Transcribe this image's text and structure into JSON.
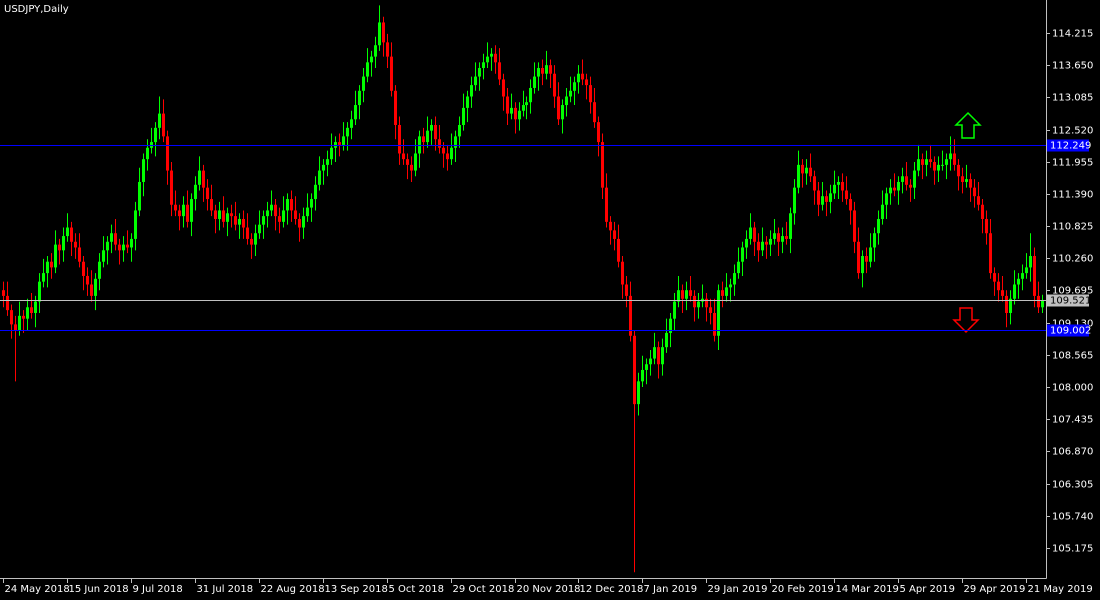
{
  "chart_data": {
    "type": "candlestick",
    "title": "USDJPY,Daily",
    "up_color": "#00ff00",
    "down_color": "#ff0000",
    "xlim": [
      -0.75,
      261
    ],
    "xticks": [
      {
        "value": 0,
        "label": "24 May 2018"
      },
      {
        "value": 16,
        "label": "15 Jun 2018"
      },
      {
        "value": 32,
        "label": "9 Jul 2018"
      },
      {
        "value": 48,
        "label": "31 Jul 2018"
      },
      {
        "value": 64,
        "label": "22 Aug 2018"
      },
      {
        "value": 80,
        "label": "13 Sep 2018"
      },
      {
        "value": 96,
        "label": "5 Oct 2018"
      },
      {
        "value": 112,
        "label": "29 Oct 2018"
      },
      {
        "value": 128,
        "label": "20 Nov 2018"
      },
      {
        "value": 144,
        "label": "12 Dec 2018"
      },
      {
        "value": 160,
        "label": "7 Jan 2019"
      },
      {
        "value": 176,
        "label": "29 Jan 2019"
      },
      {
        "value": 192,
        "label": "20 Feb 2019"
      },
      {
        "value": 208,
        "label": "14 Mar 2019"
      },
      {
        "value": 224,
        "label": "5 Apr 2019"
      },
      {
        "value": 240,
        "label": "29 Apr 2019"
      },
      {
        "value": 256,
        "label": "21 May 2019"
      }
    ],
    "ylim": [
      104.648,
      114.794
    ],
    "yticks": [
      114.215,
      {
        "value": 113.65,
        "label": "113.650"
      },
      113.085,
      {
        "value": 112.52,
        "label": "112.520"
      },
      111.955,
      {
        "value": 111.39,
        "label": "111.390"
      },
      110.825,
      {
        "value": 110.26,
        "label": "110.260"
      },
      109.695,
      {
        "value": 109.13,
        "label": "109.130"
      },
      108.565,
      {
        "value": 108,
        "label": "108.000"
      },
      107.435,
      {
        "value": 106.87,
        "label": "106.870"
      },
      106.305,
      {
        "value": 105.74,
        "label": "105.740"
      },
      105.175
    ],
    "hlines": [
      {
        "value": 112.249,
        "color": "#0000ff",
        "text_color": "#ffffff"
      },
      {
        "value": 109.521,
        "color": "#c0c0c0",
        "text_color": "#000000"
      },
      {
        "value": 109.002,
        "color": "#0000ff",
        "text_color": "#ffffff"
      }
    ],
    "open": [
      109.7,
      109.6,
      109.35,
      109.1,
      109.0,
      109.25,
      109.2,
      109.4,
      109.3,
      109.5,
      109.85,
      110.0,
      110.2,
      110.1,
      110.5,
      110.4,
      110.65,
      110.8,
      110.55,
      110.45,
      110.2,
      109.95,
      109.8,
      109.6,
      109.9,
      110.2,
      110.4,
      110.55,
      110.7,
      110.5,
      110.4,
      110.5,
      110.45,
      110.6,
      111.1,
      111.6,
      112.0,
      112.2,
      112.3,
      112.55,
      112.8,
      112.4,
      111.8,
      111.2,
      111.1,
      111.0,
      111.2,
      110.9,
      111.3,
      111.55,
      111.8,
      111.5,
      111.3,
      111.1,
      110.95,
      111.1,
      110.9,
      111.05,
      111.0,
      110.85,
      110.95,
      110.8,
      110.6,
      110.5,
      110.7,
      110.85,
      111.0,
      111.1,
      111.2,
      111.0,
      110.9,
      111.1,
      111.3,
      111.1,
      110.95,
      110.8,
      111.0,
      111.15,
      111.3,
      111.55,
      111.8,
      111.9,
      112.0,
      112.2,
      112.3,
      112.25,
      112.4,
      112.55,
      112.7,
      112.95,
      113.2,
      113.45,
      113.7,
      113.8,
      114.0,
      114.4,
      114.05,
      113.8,
      113.2,
      112.6,
      112.1,
      112.0,
      111.9,
      111.8,
      112.1,
      112.4,
      112.3,
      112.5,
      112.6,
      112.35,
      112.2,
      112.1,
      112.0,
      112.2,
      112.4,
      112.6,
      112.9,
      113.1,
      113.3,
      113.45,
      113.6,
      113.7,
      113.8,
      113.85,
      113.7,
      113.4,
      113.1,
      112.8,
      112.9,
      112.7,
      112.85,
      112.95,
      113.0,
      113.25,
      113.45,
      113.6,
      113.5,
      113.65,
      113.5,
      113.1,
      112.7,
      112.95,
      113.1,
      113.2,
      113.35,
      113.5,
      113.4,
      113.3,
      113.0,
      112.65,
      112.3,
      111.5,
      110.9,
      110.75,
      110.6,
      110.2,
      109.8,
      109.6,
      108.9,
      107.7,
      108.1,
      108.3,
      108.4,
      108.5,
      108.7,
      108.4,
      108.7,
      108.95,
      109.2,
      109.5,
      109.7,
      109.55,
      109.7,
      109.6,
      109.4,
      109.5,
      109.55,
      109.4,
      109.3,
      108.9,
      109.7,
      109.6,
      109.75,
      109.8,
      110.0,
      110.2,
      110.45,
      110.6,
      110.8,
      110.55,
      110.4,
      110.55,
      110.5,
      110.6,
      110.7,
      110.55,
      110.65,
      110.6,
      111.05,
      111.5,
      111.9,
      111.75,
      111.85,
      111.7,
      111.45,
      111.2,
      111.35,
      111.25,
      111.4,
      111.55,
      111.6,
      111.45,
      111.3,
      111.1,
      110.55,
      110.0,
      110.3,
      110.2,
      110.45,
      110.7,
      110.95,
      111.2,
      111.4,
      111.5,
      111.45,
      111.6,
      111.7,
      111.55,
      111.5,
      111.8,
      112.0,
      111.9,
      112.0,
      111.95,
      111.8,
      111.9,
      111.9,
      112.0,
      112.1,
      111.9,
      111.7,
      111.6,
      111.65,
      111.5,
      111.35,
      111.2,
      110.95,
      110.7,
      110.0,
      109.85,
      109.7,
      109.6,
      109.3,
      109.55,
      109.8,
      109.9,
      110.0,
      110.1,
      110.3,
      109.6,
      109.4
    ],
    "high": [
      109.85,
      109.85,
      109.45,
      109.25,
      109.5,
      109.35,
      109.55,
      109.65,
      109.6,
      110.0,
      110.25,
      110.3,
      110.35,
      110.75,
      110.6,
      110.8,
      111.05,
      110.9,
      110.7,
      110.7,
      110.3,
      110.1,
      110.05,
      110.0,
      110.35,
      110.65,
      110.65,
      110.85,
      110.95,
      110.6,
      110.65,
      110.75,
      110.7,
      111.25,
      111.85,
      112.1,
      112.35,
      112.55,
      112.65,
      113.1,
      113.05,
      112.5,
      111.95,
      111.45,
      111.2,
      111.35,
      111.45,
      111.4,
      111.7,
      112.05,
      111.9,
      111.65,
      111.55,
      111.2,
      111.25,
      111.35,
      111.15,
      111.2,
      111.25,
      111.05,
      111.1,
      111.05,
      110.7,
      110.85,
      111.1,
      111.1,
      111.25,
      111.45,
      111.3,
      111.15,
      111.35,
      111.4,
      111.45,
      111.35,
      111.05,
      111.15,
      111.4,
      111.4,
      111.7,
      112.05,
      112.0,
      112.15,
      112.45,
      112.4,
      112.45,
      112.65,
      112.65,
      112.85,
      113.2,
      113.3,
      113.6,
      113.95,
      113.9,
      114.15,
      114.7,
      114.5,
      114.2,
      114.05,
      113.3,
      112.75,
      112.35,
      112.1,
      112.05,
      112.35,
      112.5,
      112.55,
      112.75,
      112.7,
      112.75,
      112.6,
      112.3,
      112.25,
      112.45,
      112.5,
      112.75,
      113.15,
      113.2,
      113.45,
      113.7,
      113.7,
      113.85,
      114.05,
      113.95,
      114.0,
      113.95,
      113.5,
      113.25,
      113.15,
      113.0,
      113.0,
      113.2,
      113.1,
      113.4,
      113.7,
      113.7,
      113.75,
      113.9,
      113.75,
      113.65,
      113.35,
      113.05,
      113.25,
      113.45,
      113.45,
      113.65,
      113.75,
      113.5,
      113.45,
      113.25,
      112.75,
      112.45,
      111.75,
      111.0,
      110.9,
      110.85,
      110.3,
      109.95,
      109.85,
      109.0,
      108.25,
      108.55,
      108.5,
      108.65,
      108.95,
      108.8,
      108.85,
      109.2,
      109.3,
      109.65,
      109.95,
      109.8,
      109.85,
      109.95,
      109.7,
      109.65,
      109.8,
      109.65,
      109.55,
      109.55,
      109.8,
      109.85,
      110.0,
      109.9,
      110.15,
      110.45,
      110.55,
      110.75,
      111.05,
      110.9,
      110.7,
      110.8,
      110.65,
      110.75,
      110.95,
      110.8,
      110.8,
      110.9,
      111.15,
      111.65,
      112.15,
      112.0,
      112.0,
      112.1,
      111.8,
      111.6,
      111.6,
      111.45,
      111.55,
      111.8,
      111.7,
      111.75,
      111.7,
      111.4,
      111.25,
      110.8,
      110.4,
      110.45,
      110.7,
      110.8,
      111.1,
      111.45,
      111.5,
      111.65,
      111.75,
      111.7,
      111.85,
      111.95,
      111.65,
      111.95,
      112.25,
      112.1,
      112.15,
      112.25,
      112.05,
      112.05,
      112.15,
      112.1,
      112.4,
      112.35,
      112.0,
      111.85,
      111.9,
      111.75,
      111.65,
      111.6,
      111.3,
      111.1,
      110.95,
      110.1,
      110.0,
      109.95,
      109.7,
      109.7,
      110.05,
      110.0,
      110.15,
      110.35,
      110.7,
      110.45,
      109.85,
      109.62
    ],
    "low": [
      109.4,
      109.25,
      108.85,
      108.1,
      108.9,
      108.95,
      109.0,
      109.2,
      109.05,
      109.3,
      109.75,
      109.75,
      109.9,
      110.0,
      110.15,
      110.2,
      110.55,
      110.3,
      110.25,
      110.1,
      109.7,
      109.6,
      109.5,
      109.35,
      109.7,
      110.1,
      110.15,
      110.35,
      110.4,
      110.15,
      110.2,
      110.35,
      110.2,
      110.4,
      111.0,
      111.35,
      111.8,
      112.1,
      112.05,
      112.35,
      112.3,
      111.55,
      111.0,
      111.0,
      110.75,
      110.8,
      110.8,
      110.65,
      111.1,
      111.45,
      111.25,
      111.1,
      111.0,
      110.7,
      110.75,
      110.8,
      110.65,
      110.8,
      110.75,
      110.6,
      110.6,
      110.5,
      110.25,
      110.3,
      110.6,
      110.6,
      110.8,
      111.0,
      110.75,
      110.7,
      110.8,
      110.85,
      110.9,
      110.85,
      110.55,
      110.6,
      110.9,
      110.9,
      111.1,
      111.45,
      111.55,
      111.7,
      111.9,
      111.95,
      112.05,
      112.15,
      112.15,
      112.35,
      112.6,
      112.7,
      113.0,
      113.35,
      113.45,
      113.6,
      113.9,
      113.8,
      113.6,
      113.1,
      112.35,
      111.9,
      111.9,
      111.65,
      111.6,
      111.7,
      111.85,
      112.1,
      112.2,
      112.25,
      112.15,
      112.1,
      111.85,
      111.8,
      111.9,
      111.95,
      112.2,
      112.5,
      112.65,
      112.9,
      113.2,
      113.2,
      113.4,
      113.6,
      113.55,
      113.5,
      113.3,
      112.85,
      112.6,
      112.7,
      112.45,
      112.5,
      112.75,
      112.7,
      112.8,
      113.15,
      113.2,
      113.3,
      113.4,
      113.25,
      112.9,
      112.6,
      112.45,
      112.75,
      113.0,
      112.95,
      113.15,
      113.3,
      113.05,
      112.8,
      112.55,
      112.05,
      111.3,
      110.8,
      110.5,
      110.4,
      110.1,
      109.55,
      109.4,
      108.8,
      104.75,
      107.5,
      108.0,
      108.05,
      108.2,
      108.4,
      108.15,
      108.2,
      108.6,
      108.7,
      109.0,
      109.4,
      109.3,
      109.35,
      109.5,
      109.15,
      109.2,
      109.4,
      109.15,
      109.1,
      108.8,
      108.65,
      109.4,
      109.5,
      109.5,
      109.6,
      109.9,
      109.95,
      110.25,
      110.5,
      110.3,
      110.2,
      110.3,
      110.25,
      110.3,
      110.5,
      110.3,
      110.35,
      110.5,
      110.35,
      110.85,
      111.4,
      111.5,
      111.55,
      111.6,
      111.2,
      111.0,
      111.1,
      111.0,
      111.05,
      111.3,
      111.3,
      111.25,
      111.2,
      110.85,
      110.35,
      109.9,
      109.75,
      110.0,
      110.1,
      110.2,
      110.5,
      110.85,
      110.95,
      111.2,
      111.35,
      111.2,
      111.4,
      111.45,
      111.25,
      111.3,
      111.7,
      111.65,
      111.7,
      111.85,
      111.55,
      111.6,
      111.8,
      111.65,
      111.8,
      111.8,
      111.45,
      111.4,
      111.5,
      111.25,
      111.15,
      111.1,
      110.7,
      110.5,
      109.9,
      109.6,
      109.5,
      109.5,
      109.05,
      109.1,
      109.45,
      109.55,
      109.7,
      109.9,
      109.85,
      109.4,
      109.3,
      109.3
    ],
    "close": [
      109.6,
      109.35,
      109.1,
      109.0,
      109.25,
      109.2,
      109.4,
      109.3,
      109.5,
      109.85,
      110.0,
      110.2,
      110.1,
      110.5,
      110.4,
      110.65,
      110.8,
      110.55,
      110.45,
      110.2,
      109.95,
      109.8,
      109.6,
      109.9,
      110.2,
      110.4,
      110.55,
      110.7,
      110.5,
      110.4,
      110.5,
      110.45,
      110.6,
      111.1,
      111.6,
      112.0,
      112.2,
      112.3,
      112.55,
      112.8,
      112.4,
      111.8,
      111.2,
      111.1,
      111.0,
      111.2,
      110.9,
      111.3,
      111.55,
      111.8,
      111.5,
      111.3,
      111.1,
      110.95,
      111.1,
      110.9,
      111.05,
      111.0,
      110.85,
      110.95,
      110.8,
      110.6,
      110.5,
      110.7,
      110.85,
      111.0,
      111.1,
      111.2,
      111.0,
      110.9,
      111.1,
      111.3,
      111.1,
      110.95,
      110.8,
      111.0,
      111.15,
      111.3,
      111.55,
      111.8,
      111.9,
      112.0,
      112.2,
      112.3,
      112.25,
      112.4,
      112.55,
      112.7,
      112.95,
      113.2,
      113.45,
      113.7,
      113.8,
      114.0,
      114.4,
      114.05,
      113.8,
      113.2,
      112.6,
      112.1,
      112.0,
      111.9,
      111.8,
      112.1,
      112.4,
      112.3,
      112.5,
      112.6,
      112.35,
      112.2,
      112.1,
      112.0,
      112.2,
      112.4,
      112.6,
      112.9,
      113.1,
      113.3,
      113.45,
      113.6,
      113.7,
      113.8,
      113.85,
      113.7,
      113.4,
      113.1,
      112.8,
      112.9,
      112.7,
      112.85,
      112.95,
      113.0,
      113.25,
      113.45,
      113.6,
      113.5,
      113.65,
      113.5,
      113.1,
      112.7,
      112.95,
      113.1,
      113.2,
      113.35,
      113.5,
      113.4,
      113.3,
      113.0,
      112.65,
      112.3,
      111.5,
      110.9,
      110.75,
      110.6,
      110.2,
      109.8,
      109.6,
      108.9,
      107.7,
      108.1,
      108.3,
      108.4,
      108.5,
      108.7,
      108.4,
      108.7,
      108.95,
      109.2,
      109.5,
      109.7,
      109.55,
      109.7,
      109.6,
      109.4,
      109.5,
      109.55,
      109.4,
      109.3,
      108.9,
      109.7,
      109.6,
      109.75,
      109.8,
      110.0,
      110.2,
      110.45,
      110.6,
      110.8,
      110.55,
      110.4,
      110.55,
      110.5,
      110.6,
      110.7,
      110.55,
      110.65,
      110.6,
      111.05,
      111.5,
      111.9,
      111.75,
      111.85,
      111.7,
      111.45,
      111.2,
      111.35,
      111.25,
      111.4,
      111.55,
      111.6,
      111.45,
      111.3,
      111.1,
      110.55,
      110.0,
      110.3,
      110.2,
      110.45,
      110.7,
      110.95,
      111.2,
      111.4,
      111.5,
      111.45,
      111.6,
      111.7,
      111.55,
      111.5,
      111.8,
      112.0,
      111.9,
      112.0,
      111.95,
      111.8,
      111.9,
      111.9,
      112.0,
      112.1,
      111.9,
      111.7,
      111.6,
      111.65,
      111.5,
      111.35,
      111.2,
      110.95,
      110.7,
      110.0,
      109.85,
      109.7,
      109.6,
      109.3,
      109.55,
      109.8,
      109.9,
      110.0,
      110.1,
      110.3,
      109.6,
      109.4,
      109.52
    ]
  }
}
